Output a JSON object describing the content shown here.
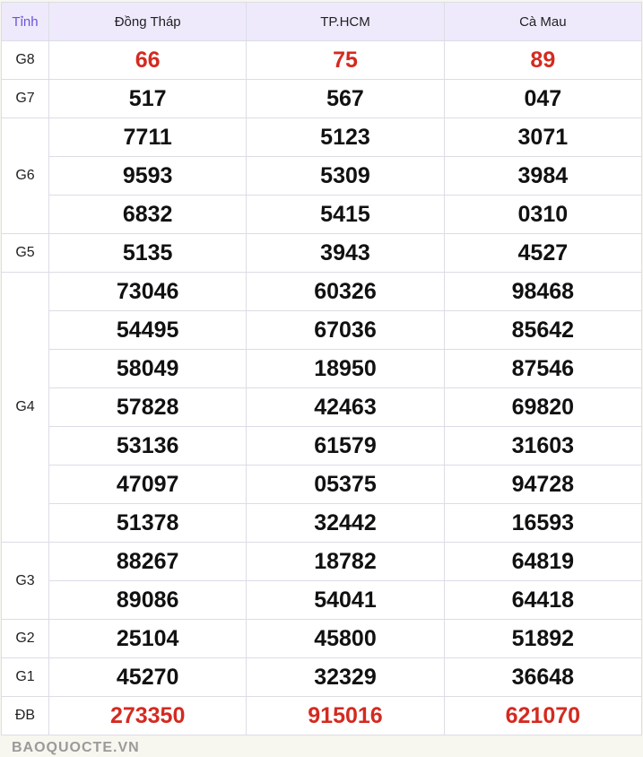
{
  "header": {
    "label": "Tỉnh",
    "provinces": [
      "Đồng Tháp",
      "TP.HCM",
      "Cà Mau"
    ]
  },
  "prizes": [
    {
      "label": "G8",
      "highlight": true,
      "rows": [
        [
          "66",
          "75",
          "89"
        ]
      ]
    },
    {
      "label": "G7",
      "rows": [
        [
          "517",
          "567",
          "047"
        ]
      ]
    },
    {
      "label": "G6",
      "rows": [
        [
          "7711",
          "5123",
          "3071"
        ],
        [
          "9593",
          "5309",
          "3984"
        ],
        [
          "6832",
          "5415",
          "0310"
        ]
      ]
    },
    {
      "label": "G5",
      "rows": [
        [
          "5135",
          "3943",
          "4527"
        ]
      ]
    },
    {
      "label": "G4",
      "rows": [
        [
          "73046",
          "60326",
          "98468"
        ],
        [
          "54495",
          "67036",
          "85642"
        ],
        [
          "58049",
          "18950",
          "87546"
        ],
        [
          "57828",
          "42463",
          "69820"
        ],
        [
          "53136",
          "61579",
          "31603"
        ],
        [
          "47097",
          "05375",
          "94728"
        ],
        [
          "51378",
          "32442",
          "16593"
        ]
      ]
    },
    {
      "label": "G3",
      "rows": [
        [
          "88267",
          "18782",
          "64819"
        ],
        [
          "89086",
          "54041",
          "64418"
        ]
      ]
    },
    {
      "label": "G2",
      "rows": [
        [
          "25104",
          "45800",
          "51892"
        ]
      ]
    },
    {
      "label": "G1",
      "rows": [
        [
          "45270",
          "32329",
          "36648"
        ]
      ]
    },
    {
      "label": "ĐB",
      "highlight": true,
      "rows": [
        [
          "273350",
          "915016",
          "621070"
        ]
      ]
    }
  ],
  "watermark": "BAOQUOCTE.VN",
  "colors": {
    "highlight": "#d42a20",
    "header_bg": "#eeeafc",
    "tinh_label": "#6b55d6"
  }
}
